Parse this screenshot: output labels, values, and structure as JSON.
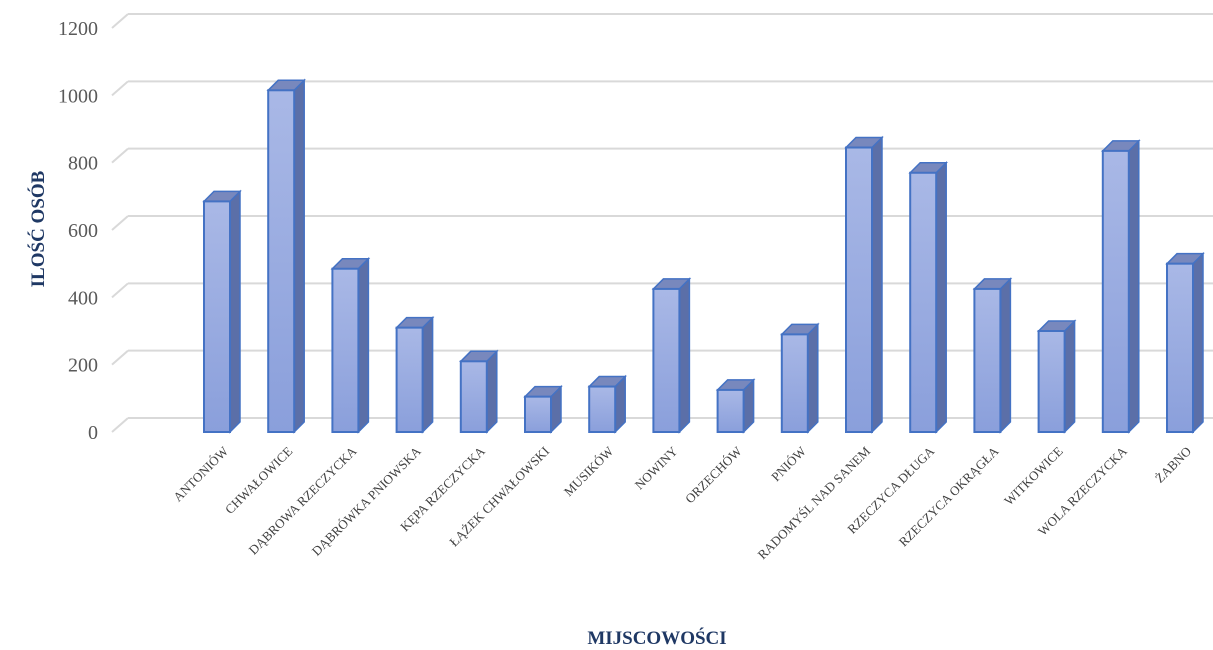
{
  "chart_data": {
    "type": "bar",
    "style": "3d-column",
    "xlabel": "MIJSCOWOŚCI",
    "ylabel": "ILOŚĆ OSÓB",
    "ylim": [
      0,
      1200
    ],
    "yticks": [
      0,
      200,
      400,
      600,
      800,
      1000,
      1200
    ],
    "grid": true,
    "legend": "none",
    "categories": [
      "ANTONIÓW",
      "CHWAŁOWICE",
      "DĄBROWA RZECZYCKA",
      "DĄBRÓWKA PNIOWSKA",
      "KĘPA RZECZYCKA",
      "ŁĄŻEK CHWAŁOWSKI",
      "MUSIKÓW",
      "NOWINY",
      "ORZECHÓW",
      "PNIÓW",
      "RADOMYŚL NAD SANEM",
      "RZECZYCA DŁUGA",
      "RZECZYCA OKRĄGŁA",
      "WITKOWICE",
      "WOLA RZECZYCKA",
      "ŻABNO"
    ],
    "values": [
      685,
      1015,
      485,
      310,
      210,
      105,
      135,
      425,
      125,
      290,
      845,
      770,
      425,
      300,
      835,
      500
    ],
    "colors": {
      "bar_top": "#a9b8e6",
      "bar_bottom": "#8a9fdb",
      "bar_stroke": "#4472c4",
      "bar_side": "#5b6fa8",
      "bar_cap": "#7888bd",
      "grid": "#d9d9d9",
      "title": "#1f3864"
    }
  }
}
